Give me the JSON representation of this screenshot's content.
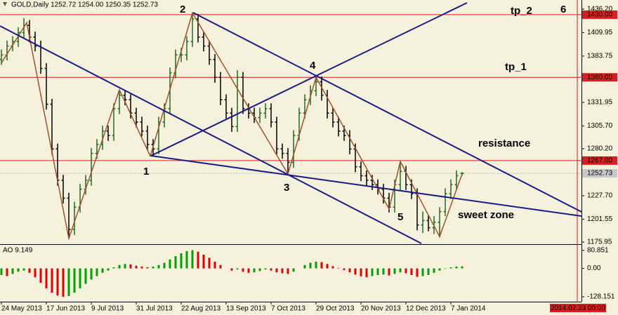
{
  "chart_data": [
    {
      "type": "ohlc",
      "header": "GOLD,Daily  1252.72 1254.00 1250.35 1252.73",
      "x": [
        0,
        2,
        4,
        6,
        8,
        10,
        12,
        14,
        16,
        18,
        20,
        22,
        24,
        26,
        28,
        30,
        32,
        34,
        36,
        38,
        40,
        42,
        44,
        46,
        48,
        50,
        52,
        54,
        56,
        58,
        60,
        62,
        64,
        66,
        68,
        70,
        72,
        74,
        76,
        78,
        80,
        82,
        84,
        86,
        88,
        90,
        92,
        94,
        96,
        98,
        100,
        102,
        104,
        106,
        108,
        110,
        112,
        114,
        116,
        118,
        120,
        122,
        124,
        126,
        128,
        130,
        132,
        134,
        136,
        138,
        140,
        142,
        144,
        146,
        148,
        150,
        152,
        154,
        156,
        158,
        160,
        162,
        164
      ],
      "values": [
        [
          1380,
          1391,
          1374,
          1385
        ],
        [
          1385,
          1401,
          1379,
          1395
        ],
        [
          1395,
          1406,
          1389,
          1400
        ],
        [
          1400,
          1416,
          1394,
          1410
        ],
        [
          1410,
          1426,
          1404,
          1418
        ],
        [
          1418,
          1424,
          1399,
          1405
        ],
        [
          1405,
          1411,
          1389,
          1395
        ],
        [
          1395,
          1401,
          1364,
          1370
        ],
        [
          1370,
          1376,
          1324,
          1330
        ],
        [
          1330,
          1336,
          1274,
          1280
        ],
        [
          1280,
          1286,
          1239,
          1245
        ],
        [
          1245,
          1251,
          1219,
          1225
        ],
        [
          1225,
          1231,
          1180,
          1190
        ],
        [
          1190,
          1221,
          1184,
          1215
        ],
        [
          1215,
          1241,
          1209,
          1235
        ],
        [
          1235,
          1251,
          1229,
          1245
        ],
        [
          1245,
          1281,
          1239,
          1275
        ],
        [
          1275,
          1291,
          1269,
          1285
        ],
        [
          1285,
          1306,
          1279,
          1300
        ],
        [
          1300,
          1306,
          1289,
          1295
        ],
        [
          1295,
          1331,
          1289,
          1325
        ],
        [
          1325,
          1346,
          1319,
          1340
        ],
        [
          1340,
          1346,
          1329,
          1335
        ],
        [
          1335,
          1341,
          1314,
          1320
        ],
        [
          1320,
          1326,
          1304,
          1310
        ],
        [
          1310,
          1316,
          1294,
          1300
        ],
        [
          1300,
          1306,
          1279,
          1285
        ],
        [
          1285,
          1291,
          1272,
          1280
        ],
        [
          1280,
          1316,
          1274,
          1310
        ],
        [
          1310,
          1331,
          1304,
          1325
        ],
        [
          1325,
          1371,
          1319,
          1365
        ],
        [
          1365,
          1391,
          1359,
          1385
        ],
        [
          1385,
          1393,
          1377,
          1385
        ],
        [
          1385,
          1406,
          1379,
          1400
        ],
        [
          1400,
          1432,
          1394,
          1425
        ],
        [
          1425,
          1431,
          1399,
          1405
        ],
        [
          1405,
          1411,
          1389,
          1395
        ],
        [
          1395,
          1401,
          1374,
          1380
        ],
        [
          1380,
          1386,
          1354,
          1360
        ],
        [
          1360,
          1366,
          1329,
          1335
        ],
        [
          1335,
          1341,
          1314,
          1320
        ],
        [
          1320,
          1326,
          1299,
          1305
        ],
        [
          1305,
          1368,
          1299,
          1360
        ],
        [
          1360,
          1366,
          1319,
          1325
        ],
        [
          1325,
          1331,
          1314,
          1320
        ],
        [
          1320,
          1326,
          1309,
          1315
        ],
        [
          1315,
          1326,
          1309,
          1320
        ],
        [
          1320,
          1331,
          1314,
          1325
        ],
        [
          1325,
          1331,
          1304,
          1310
        ],
        [
          1310,
          1316,
          1274,
          1280
        ],
        [
          1280,
          1286,
          1269,
          1275
        ],
        [
          1275,
          1281,
          1251,
          1265
        ],
        [
          1265,
          1301,
          1259,
          1295
        ],
        [
          1295,
          1326,
          1289,
          1320
        ],
        [
          1320,
          1341,
          1314,
          1335
        ],
        [
          1335,
          1351,
          1329,
          1345
        ],
        [
          1345,
          1362,
          1339,
          1355
        ],
        [
          1355,
          1361,
          1334,
          1340
        ],
        [
          1340,
          1346,
          1314,
          1320
        ],
        [
          1320,
          1326,
          1304,
          1310
        ],
        [
          1310,
          1316,
          1294,
          1300
        ],
        [
          1300,
          1306,
          1289,
          1295
        ],
        [
          1295,
          1301,
          1274,
          1280
        ],
        [
          1280,
          1286,
          1254,
          1260
        ],
        [
          1260,
          1266,
          1244,
          1250
        ],
        [
          1250,
          1256,
          1239,
          1245
        ],
        [
          1245,
          1251,
          1234,
          1240
        ],
        [
          1240,
          1246,
          1229,
          1235
        ],
        [
          1235,
          1241,
          1219,
          1225
        ],
        [
          1225,
          1231,
          1209,
          1215
        ],
        [
          1215,
          1246,
          1209,
          1240
        ],
        [
          1240,
          1266,
          1234,
          1255
        ],
        [
          1255,
          1261,
          1234,
          1240
        ],
        [
          1240,
          1246,
          1224,
          1230
        ],
        [
          1230,
          1236,
          1189,
          1195
        ],
        [
          1195,
          1210,
          1186,
          1200
        ],
        [
          1200,
          1206,
          1188,
          1192
        ],
        [
          1192,
          1205,
          1185,
          1198
        ],
        [
          1198,
          1215,
          1181,
          1210
        ],
        [
          1210,
          1236,
          1205,
          1230
        ],
        [
          1230,
          1246,
          1224,
          1240
        ],
        [
          1240,
          1256,
          1234,
          1250
        ],
        [
          1252.72,
          1254,
          1250.35,
          1252.73
        ]
      ],
      "up_color": "#1f6b1f",
      "down_color": "#000000",
      "xlim": [
        -0.5,
        206.5
      ],
      "ylim": [
        1174.4,
        1446.4
      ],
      "yticks": [
        {
          "value": 1436.2,
          "label": "1436.20"
        },
        1409.95,
        1383.75,
        1331.95,
        {
          "value": 1305.7,
          "label": "1305.70"
        },
        {
          "value": 1280.2,
          "label": "1280.20"
        },
        {
          "value": 1227.7,
          "label": "1227.70"
        },
        1201.55,
        1175.95
      ],
      "levels": [
        {
          "value": 1430,
          "label": "1430.00"
        },
        {
          "value": 1360,
          "label": "1360.00"
        },
        {
          "value": 1267,
          "label": "1267.00"
        }
      ],
      "level_color": "#d42020",
      "current": 1252.73,
      "zigzag": {
        "x": [
          0,
          9,
          24,
          42,
          53,
          68,
          102,
          112,
          138,
          142,
          156,
          164
        ],
        "y": [
          1376,
          1421,
          1180,
          1346,
          1272,
          1432,
          1252,
          1360,
          1213,
          1266,
          1182,
          1252
        ],
        "color": "#a0522d"
      },
      "annotations": [
        "2",
        "4",
        "1",
        "3",
        "5",
        "6",
        "tp_2",
        "tp_1",
        "resistance",
        "sweet zone"
      ]
    },
    {
      "type": "bar",
      "title": "AO 9.149",
      "x": [
        0,
        2,
        4,
        6,
        8,
        10,
        12,
        14,
        16,
        18,
        20,
        22,
        24,
        26,
        28,
        30,
        32,
        34,
        36,
        38,
        40,
        42,
        44,
        46,
        48,
        50,
        52,
        54,
        56,
        58,
        60,
        62,
        64,
        66,
        68,
        70,
        72,
        74,
        76,
        78,
        80,
        82,
        84,
        86,
        88,
        90,
        92,
        94,
        96,
        98,
        100,
        102,
        104,
        106,
        108,
        110,
        112,
        114,
        116,
        118,
        120,
        122,
        124,
        126,
        128,
        130,
        132,
        134,
        136,
        138,
        140,
        142,
        144,
        146,
        148,
        150,
        152,
        154,
        156,
        158,
        160,
        162,
        164
      ],
      "values": [
        -30,
        -35,
        -25,
        -15,
        -10,
        -20,
        -40,
        -65,
        -90,
        -110,
        -122,
        -128,
        -125,
        -110,
        -90,
        -70,
        -50,
        -35,
        -20,
        -10,
        5,
        15,
        20,
        18,
        12,
        8,
        5,
        8,
        15,
        25,
        40,
        55,
        68,
        78,
        82,
        75,
        62,
        48,
        30,
        15,
        0,
        -10,
        -5,
        -15,
        -20,
        -18,
        -12,
        -5,
        -10,
        -18,
        -22,
        -25,
        -15,
        0,
        15,
        25,
        30,
        28,
        20,
        10,
        2,
        -8,
        -18,
        -28,
        -36,
        -40,
        -35,
        -30,
        -28,
        -32,
        -25,
        -18,
        -22,
        -30,
        -38,
        -35,
        -30,
        -20,
        -10,
        -2,
        5,
        8,
        9.149
      ],
      "up_color": "#00a000",
      "down_color": "#e00000",
      "xlim": [
        -0.5,
        206.5
      ],
      "ylim": [
        -150.3,
        103
      ],
      "yticks": [
        80.851,
        {
          "value": 0,
          "label": "0.00"
        },
        -128.151
      ],
      "xticks": [
        {
          "value": 0,
          "label": "24 May 2013"
        },
        {
          "value": 16,
          "label": "17 Jun 2013"
        },
        {
          "value": 32,
          "label": "9 Jul 2013"
        },
        {
          "value": 48,
          "label": "31 Jul 2013"
        },
        {
          "value": 64,
          "label": "22 Aug 2013"
        },
        {
          "value": 80,
          "label": "13 Sep 2013"
        },
        {
          "value": 96,
          "label": "7 Oct 2013"
        },
        {
          "value": 112,
          "label": "29 Oct 2013"
        },
        {
          "value": 128,
          "label": "20 Nov 2013"
        },
        {
          "value": 144,
          "label": "12 Dec 2013"
        },
        {
          "value": 160,
          "label": "7 Jan 2014"
        }
      ],
      "marker": {
        "value": 205,
        "label": "2014.02.23 00:00"
      }
    }
  ]
}
